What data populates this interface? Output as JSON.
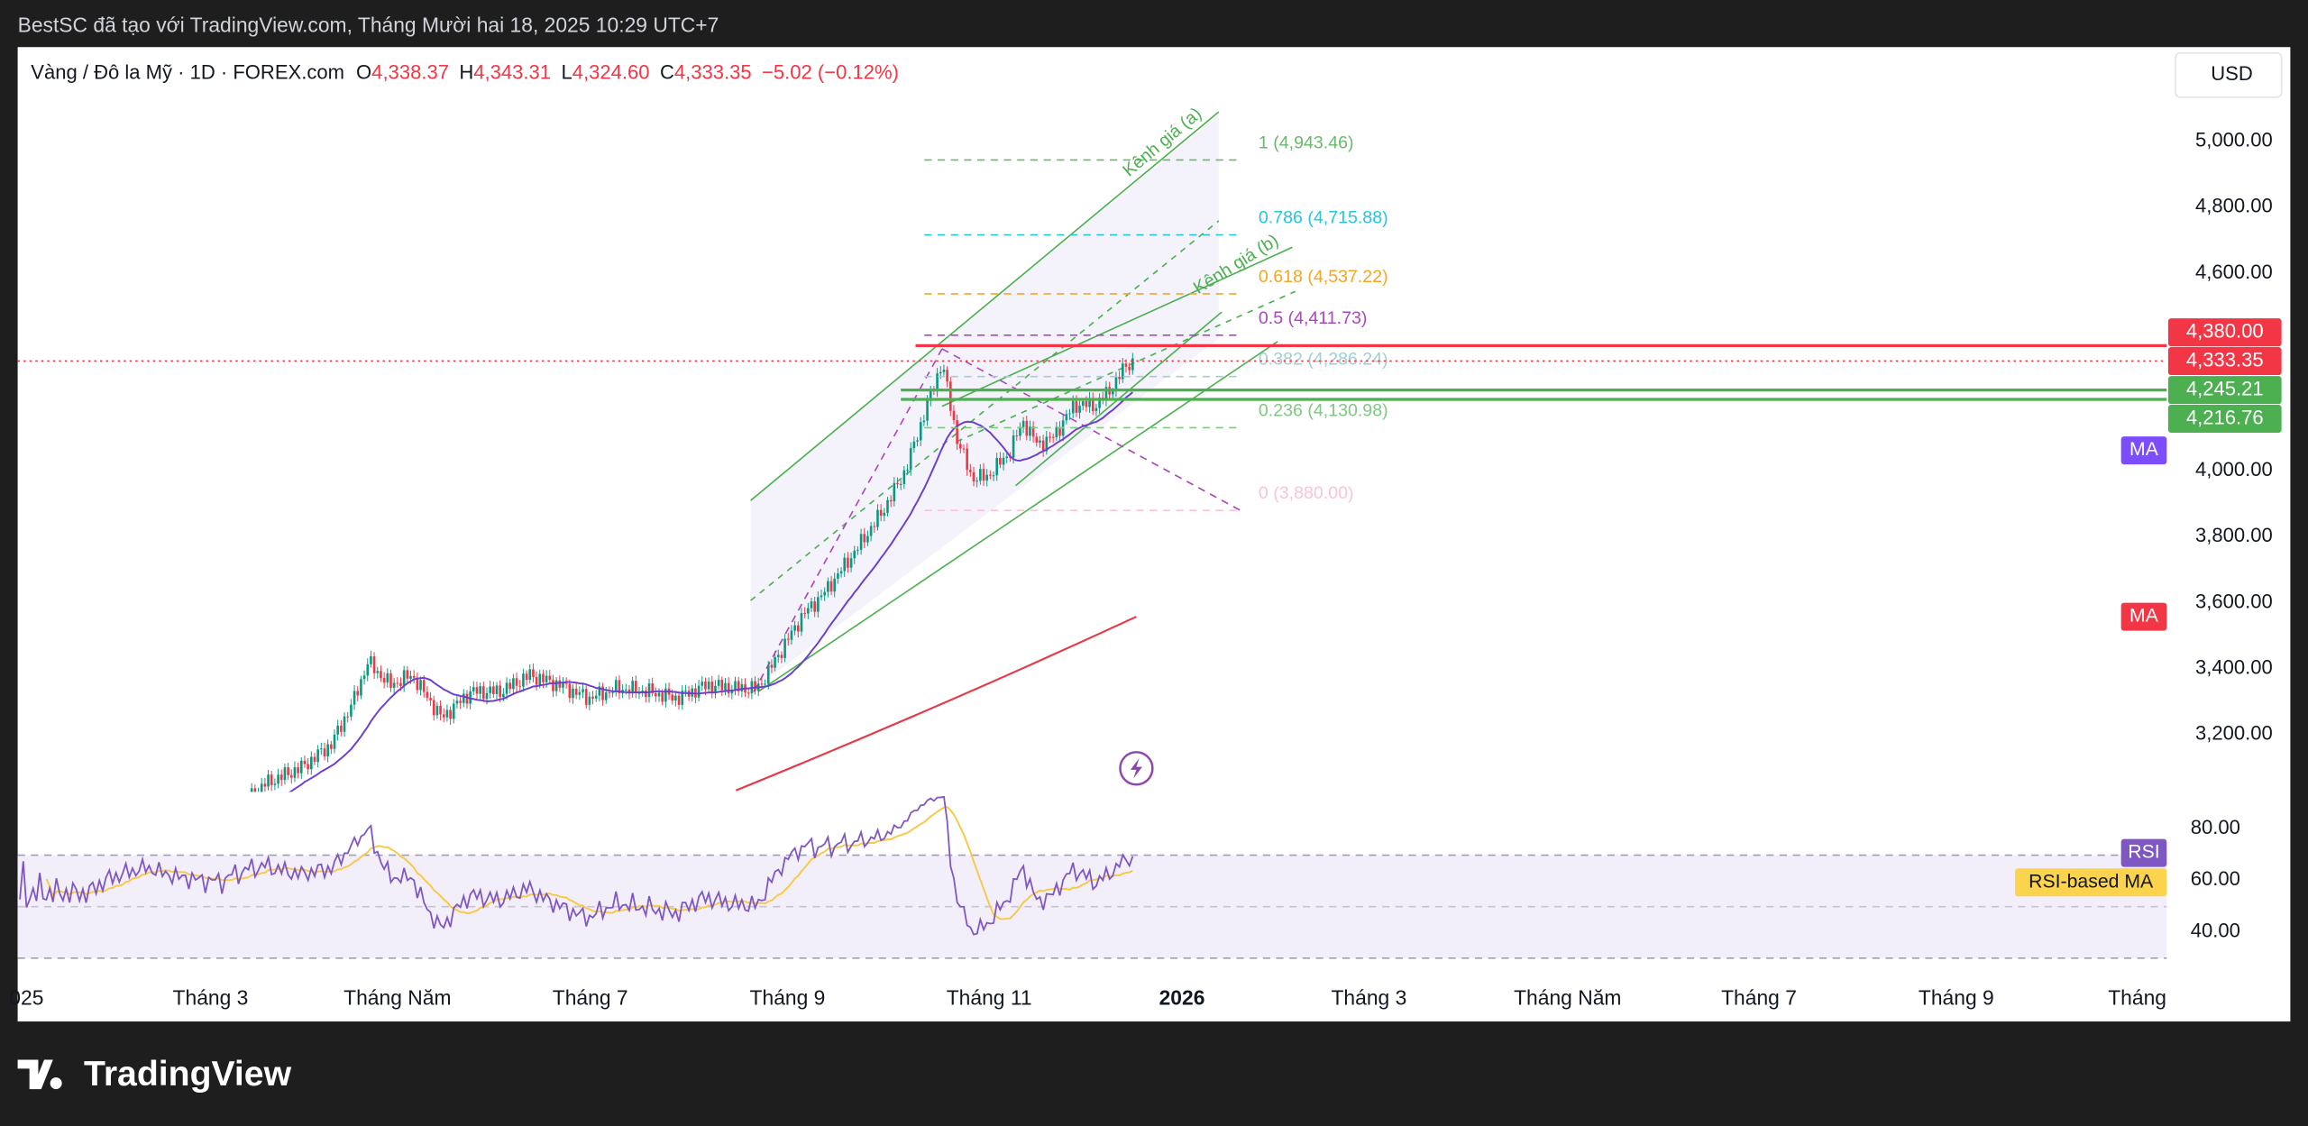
{
  "header": {
    "title": "BestSC đã tạo với TradingView.com, Tháng Mười hai 18, 2025 10:29 UTC+7"
  },
  "legend": {
    "symbol": "Vàng / Đô la Mỹ · 1D · FOREX.com",
    "items": [
      {
        "key": "O",
        "value": "4,338.37"
      },
      {
        "key": "H",
        "value": "4,343.31"
      },
      {
        "key": "L",
        "value": "4,324.60"
      },
      {
        "key": "C",
        "value": "4,333.35"
      }
    ],
    "change": "−5.02 (−0.12%)"
  },
  "currency": "USD",
  "price_axis": {
    "ticks": [
      {
        "value": 5000,
        "label": "5,000.00"
      },
      {
        "value": 4800,
        "label": "4,800.00"
      },
      {
        "value": 4600,
        "label": "4,600.00"
      },
      {
        "value": 4000,
        "label": "4,000.00"
      },
      {
        "value": 3800,
        "label": "3,800.00"
      },
      {
        "value": 3600,
        "label": "3,600.00"
      },
      {
        "value": 3400,
        "label": "3,400.00"
      },
      {
        "value": 3200,
        "label": "3,200.00"
      }
    ]
  },
  "price_badges": [
    {
      "value": 4380,
      "label": "4,380.00",
      "color": "#f23645"
    },
    {
      "value": 4333.35,
      "label": "4,333.35",
      "color": "#f23645"
    },
    {
      "value": 4245.21,
      "label": "4,245.21",
      "color": "#4caf50"
    },
    {
      "value": 4216.76,
      "label": "4,216.76",
      "color": "#4caf50"
    }
  ],
  "indicator_badges": [
    {
      "label": "MA",
      "color": "#7c4dff"
    },
    {
      "label": "MA",
      "color": "#f23645"
    }
  ],
  "fib_levels": [
    {
      "level": "1",
      "price": {
        "value": 4943.46,
        "label": "4,943.46"
      },
      "color": "#66bb6a"
    },
    {
      "level": "0.786",
      "price": {
        "value": 4715.88,
        "label": "4,715.88"
      },
      "color": "#26c6da"
    },
    {
      "level": "0.618",
      "price": {
        "value": 4537.22,
        "label": "4,537.22"
      },
      "color": "#f5a623"
    },
    {
      "level": "0.5",
      "price": {
        "value": 4411.73,
        "label": "4,411.73"
      },
      "color": "#ab47bc"
    },
    {
      "level": "0.382",
      "price": {
        "value": 4286.24,
        "label": "4,286.24"
      },
      "color": "#9fcfd0"
    },
    {
      "level": "0.236",
      "price": {
        "value": 4130.98,
        "label": "4,130.98"
      },
      "color": "#81c784"
    },
    {
      "level": "0",
      "price": {
        "value": 3880.0,
        "label": "3,880.00"
      },
      "color": "#f8c4d6"
    }
  ],
  "channels": [
    "Kênh giá (a)",
    "Kênh giá (b)"
  ],
  "rsi_axis": {
    "ticks": [
      {
        "value": 80,
        "label": "80.00"
      },
      {
        "value": 60,
        "label": "60.00"
      },
      {
        "value": 40,
        "label": "40.00"
      }
    ]
  },
  "rsi_badges": [
    "RSI",
    "RSI-based MA"
  ],
  "time_axis": [
    "025",
    "Tháng 3",
    "Tháng Năm",
    "Tháng 7",
    "Tháng 9",
    "Tháng 11",
    "2026",
    "Tháng 3",
    "Tháng Năm",
    "Tháng 7",
    "Tháng 9",
    "Tháng"
  ],
  "footer": {
    "brand": "TradingView"
  }
}
